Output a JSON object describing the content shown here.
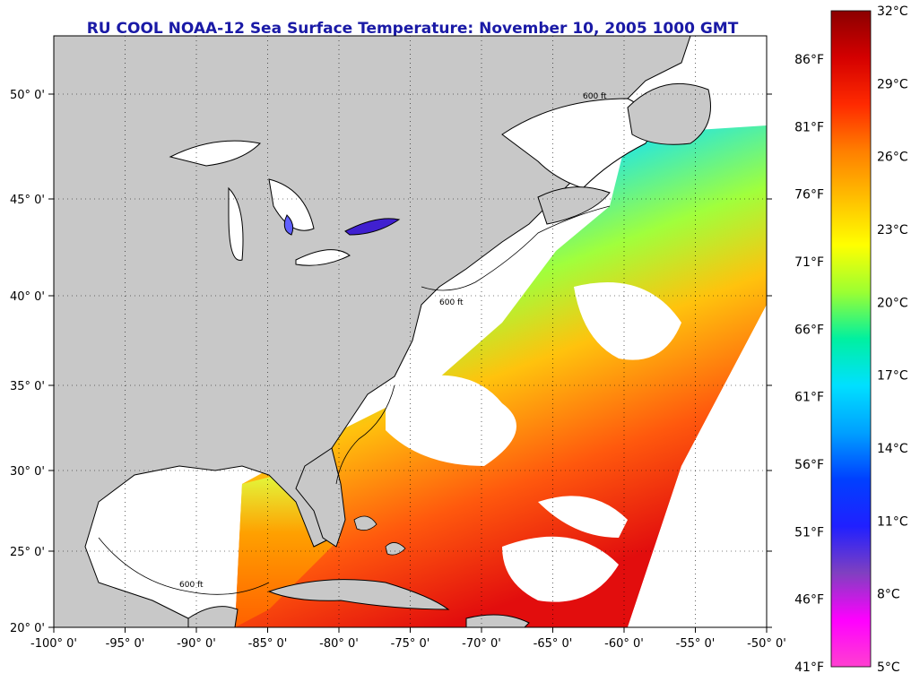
{
  "title": "RU COOL  NOAA-12  Sea Surface Temperature:  November 10, 2005 1000 GMT",
  "axes": {
    "lon_ticks": [
      "-100° 0'",
      "-95° 0'",
      "-90° 0'",
      "-85° 0'",
      "-80° 0'",
      "-75° 0'",
      "-70° 0'",
      "-65° 0'",
      "-60° 0'",
      "-55° 0'",
      "-50° 0'"
    ],
    "lat_ticks": [
      "50° 0'",
      "45° 0'",
      "40° 0'",
      "35° 0'",
      "30° 0'",
      "25° 0'",
      "20° 0'"
    ]
  },
  "colorbar": {
    "celsius_labels": [
      "32°C",
      "29°C",
      "26°C",
      "23°C",
      "20°C",
      "17°C",
      "14°C",
      "11°C",
      "8°C",
      "5°C"
    ],
    "fahrenheit_labels": [
      "86°F",
      "81°F",
      "76°F",
      "71°F",
      "66°F",
      "61°F",
      "56°F",
      "51°F",
      "46°F",
      "41°F"
    ],
    "gradient_colors": [
      "#8b0000",
      "#d40000",
      "#ff2a00",
      "#ff7f00",
      "#ffbf00",
      "#ffff00",
      "#9bff32",
      "#00f0a0",
      "#00e0ff",
      "#00a0ff",
      "#0040ff",
      "#2020ff",
      "#8040c0",
      "#ff00ff",
      "#ff40d0"
    ]
  },
  "contours": {
    "depth_label": "600 ft"
  },
  "colors": {
    "land": "#c8c8c8",
    "cloud": "#ffffff",
    "title": "#1a1aa6"
  }
}
